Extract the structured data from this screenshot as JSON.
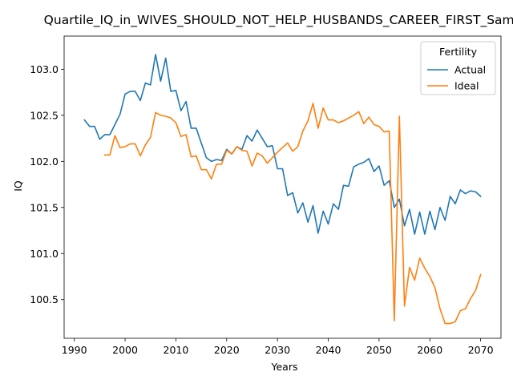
{
  "chart_data": {
    "type": "line",
    "title": "Quartile_IQ_in_WIVES_SHOULD_NOT_HELP_HUSBANDS_CAREER_FIRST_Sample",
    "xlabel": "Years",
    "ylabel": "IQ",
    "xlim": [
      1988,
      2074
    ],
    "ylim": [
      100.08,
      103.36
    ],
    "x_ticks": [
      1990,
      2000,
      2010,
      2020,
      2030,
      2040,
      2050,
      2060,
      2070
    ],
    "y_ticks": [
      100.5,
      101.0,
      101.5,
      102.0,
      102.5,
      103.0
    ],
    "x_tick_labels": [
      "1990",
      "2000",
      "2010",
      "2020",
      "2030",
      "2040",
      "2050",
      "2060",
      "2070"
    ],
    "y_tick_labels": [
      "100.5",
      "101.0",
      "101.5",
      "102.0",
      "102.5",
      "103.0"
    ],
    "grid": false,
    "legend": {
      "title": "Fertility",
      "position": "top-right"
    },
    "series": [
      {
        "name": "Actual",
        "color": "#1f77b4",
        "x": [
          1992,
          1993,
          1994,
          1995,
          1996,
          1997,
          1998,
          1999,
          2000,
          2001,
          2002,
          2003,
          2004,
          2005,
          2006,
          2007,
          2008,
          2009,
          2010,
          2011,
          2012,
          2013,
          2014,
          2015,
          2016,
          2017,
          2018,
          2019,
          2020,
          2021,
          2022,
          2023,
          2024,
          2025,
          2026,
          2027,
          2028,
          2029,
          2030,
          2031,
          2032,
          2033,
          2034,
          2035,
          2036,
          2037,
          2038,
          2039,
          2040,
          2041,
          2042,
          2043,
          2044,
          2045,
          2046,
          2047,
          2048,
          2049,
          2050,
          2051,
          2052,
          2053,
          2054,
          2055,
          2056,
          2057,
          2058,
          2059,
          2060,
          2061,
          2062,
          2063,
          2064,
          2065,
          2066,
          2067,
          2068,
          2069,
          2070
        ],
        "values": [
          102.45,
          102.38,
          102.38,
          102.24,
          102.29,
          102.29,
          102.4,
          102.51,
          102.73,
          102.76,
          102.76,
          102.66,
          102.85,
          102.83,
          103.16,
          102.87,
          103.12,
          102.76,
          102.77,
          102.55,
          102.65,
          102.36,
          102.36,
          102.2,
          102.04,
          102.0,
          102.02,
          102.01,
          102.13,
          102.08,
          102.16,
          102.13,
          102.28,
          102.22,
          102.34,
          102.25,
          102.16,
          102.17,
          101.92,
          101.92,
          101.63,
          101.66,
          101.44,
          101.55,
          101.34,
          101.52,
          101.22,
          101.46,
          101.32,
          101.54,
          101.48,
          101.74,
          101.73,
          101.94,
          101.97,
          101.99,
          102.03,
          101.89,
          101.95,
          101.74,
          101.79,
          101.5,
          101.59,
          101.3,
          101.48,
          101.21,
          101.45,
          101.21,
          101.46,
          101.26,
          101.5,
          101.36,
          101.62,
          101.54,
          101.69,
          101.65,
          101.68,
          101.67,
          101.62
        ]
      },
      {
        "name": "Ideal",
        "color": "#ff7f0e",
        "x": [
          1996,
          1997,
          1998,
          1999,
          2000,
          2001,
          2002,
          2003,
          2004,
          2005,
          2006,
          2007,
          2008,
          2009,
          2010,
          2011,
          2012,
          2013,
          2014,
          2015,
          2016,
          2017,
          2018,
          2019,
          2020,
          2021,
          2022,
          2023,
          2024,
          2025,
          2026,
          2027,
          2028,
          2029,
          2030,
          2031,
          2032,
          2033,
          2034,
          2035,
          2036,
          2037,
          2038,
          2039,
          2040,
          2041,
          2042,
          2043,
          2044,
          2045,
          2046,
          2047,
          2048,
          2049,
          2050,
          2051,
          2052,
          2053,
          2054,
          2055,
          2056,
          2057,
          2058,
          2059,
          2060,
          2061,
          2062,
          2063,
          2064,
          2065,
          2066,
          2067,
          2068,
          2069,
          2070
        ],
        "values": [
          102.07,
          102.07,
          102.28,
          102.15,
          102.16,
          102.19,
          102.19,
          102.06,
          102.18,
          102.26,
          102.53,
          102.5,
          102.49,
          102.47,
          102.42,
          102.27,
          102.29,
          102.05,
          102.06,
          101.91,
          101.91,
          101.81,
          101.97,
          101.97,
          102.12,
          102.08,
          102.16,
          102.12,
          102.11,
          101.95,
          102.09,
          102.06,
          101.98,
          102.04,
          102.1,
          102.15,
          102.2,
          102.11,
          102.16,
          102.33,
          102.44,
          102.63,
          102.36,
          102.58,
          102.45,
          102.45,
          102.42,
          102.44,
          102.47,
          102.5,
          102.54,
          102.41,
          102.48,
          102.4,
          102.38,
          102.32,
          102.33,
          100.27,
          102.49,
          100.43,
          100.85,
          100.71,
          100.95,
          100.84,
          100.75,
          100.63,
          100.4,
          100.24,
          100.24,
          100.26,
          100.38,
          100.4,
          100.51,
          100.6,
          100.77
        ]
      }
    ]
  }
}
